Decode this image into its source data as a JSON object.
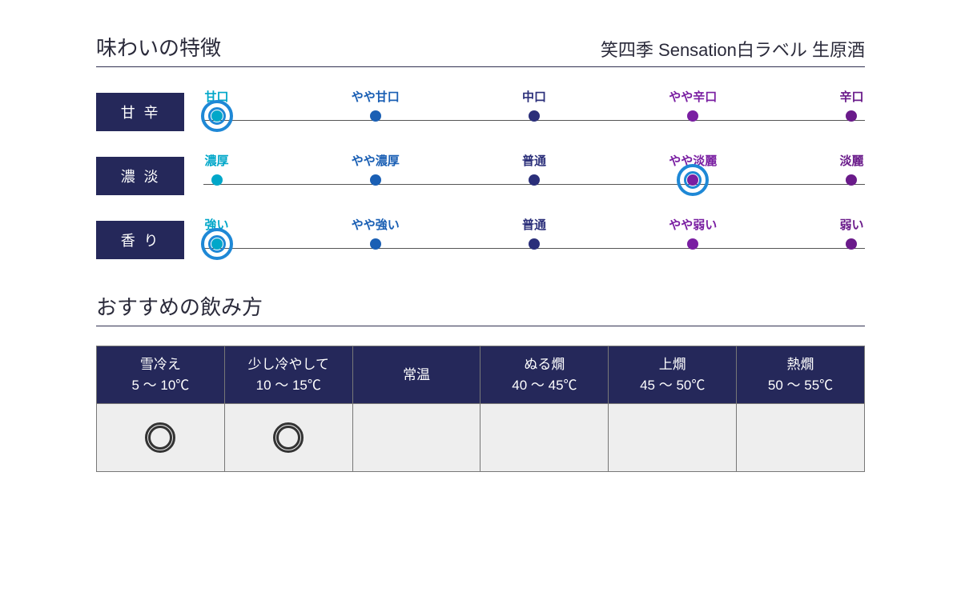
{
  "colors": {
    "navy": "#25285a",
    "line": "#555555",
    "selector": "#1e88d6",
    "circle_stroke": "#333333"
  },
  "header": {
    "title": "味わいの特徴",
    "product": "笑四季 Sensation白ラベル 生原酒"
  },
  "scales": [
    {
      "label": "甘辛",
      "selected": 0,
      "points": [
        {
          "label": "甘口",
          "pos": 2,
          "color": "#00a7c9"
        },
        {
          "label": "やや甘口",
          "pos": 26,
          "color": "#1a5fb4"
        },
        {
          "label": "中口",
          "pos": 50,
          "color": "#2b2f7a"
        },
        {
          "label": "やや辛口",
          "pos": 74,
          "color": "#7a1fa2"
        },
        {
          "label": "辛口",
          "pos": 98,
          "color": "#6a1b8a"
        }
      ]
    },
    {
      "label": "濃淡",
      "selected": 3,
      "points": [
        {
          "label": "濃厚",
          "pos": 2,
          "color": "#00a7c9"
        },
        {
          "label": "やや濃厚",
          "pos": 26,
          "color": "#1a5fb4"
        },
        {
          "label": "普通",
          "pos": 50,
          "color": "#2b2f7a"
        },
        {
          "label": "やや淡麗",
          "pos": 74,
          "color": "#7a1fa2"
        },
        {
          "label": "淡麗",
          "pos": 98,
          "color": "#6a1b8a"
        }
      ]
    },
    {
      "label": "香り",
      "selected": 0,
      "points": [
        {
          "label": "強い",
          "pos": 2,
          "color": "#00a7c9"
        },
        {
          "label": "やや強い",
          "pos": 26,
          "color": "#1a5fb4"
        },
        {
          "label": "普通",
          "pos": 50,
          "color": "#2b2f7a"
        },
        {
          "label": "やや弱い",
          "pos": 74,
          "color": "#7a1fa2"
        },
        {
          "label": "弱い",
          "pos": 98,
          "color": "#6a1b8a"
        }
      ]
    }
  ],
  "serving": {
    "title": "おすすめの飲み方",
    "columns": [
      {
        "name": "雪冷え",
        "temp": "5 ～ 10℃",
        "recommended": true
      },
      {
        "name": "少し冷やして",
        "temp": "10 ～ 15℃",
        "recommended": true
      },
      {
        "name": "常温",
        "temp": "",
        "recommended": false
      },
      {
        "name": "ぬる燗",
        "temp": "40 ～ 45℃",
        "recommended": false
      },
      {
        "name": "上燗",
        "temp": "45 ～ 50℃",
        "recommended": false
      },
      {
        "name": "熱燗",
        "temp": "50 ～ 55℃",
        "recommended": false
      }
    ]
  }
}
